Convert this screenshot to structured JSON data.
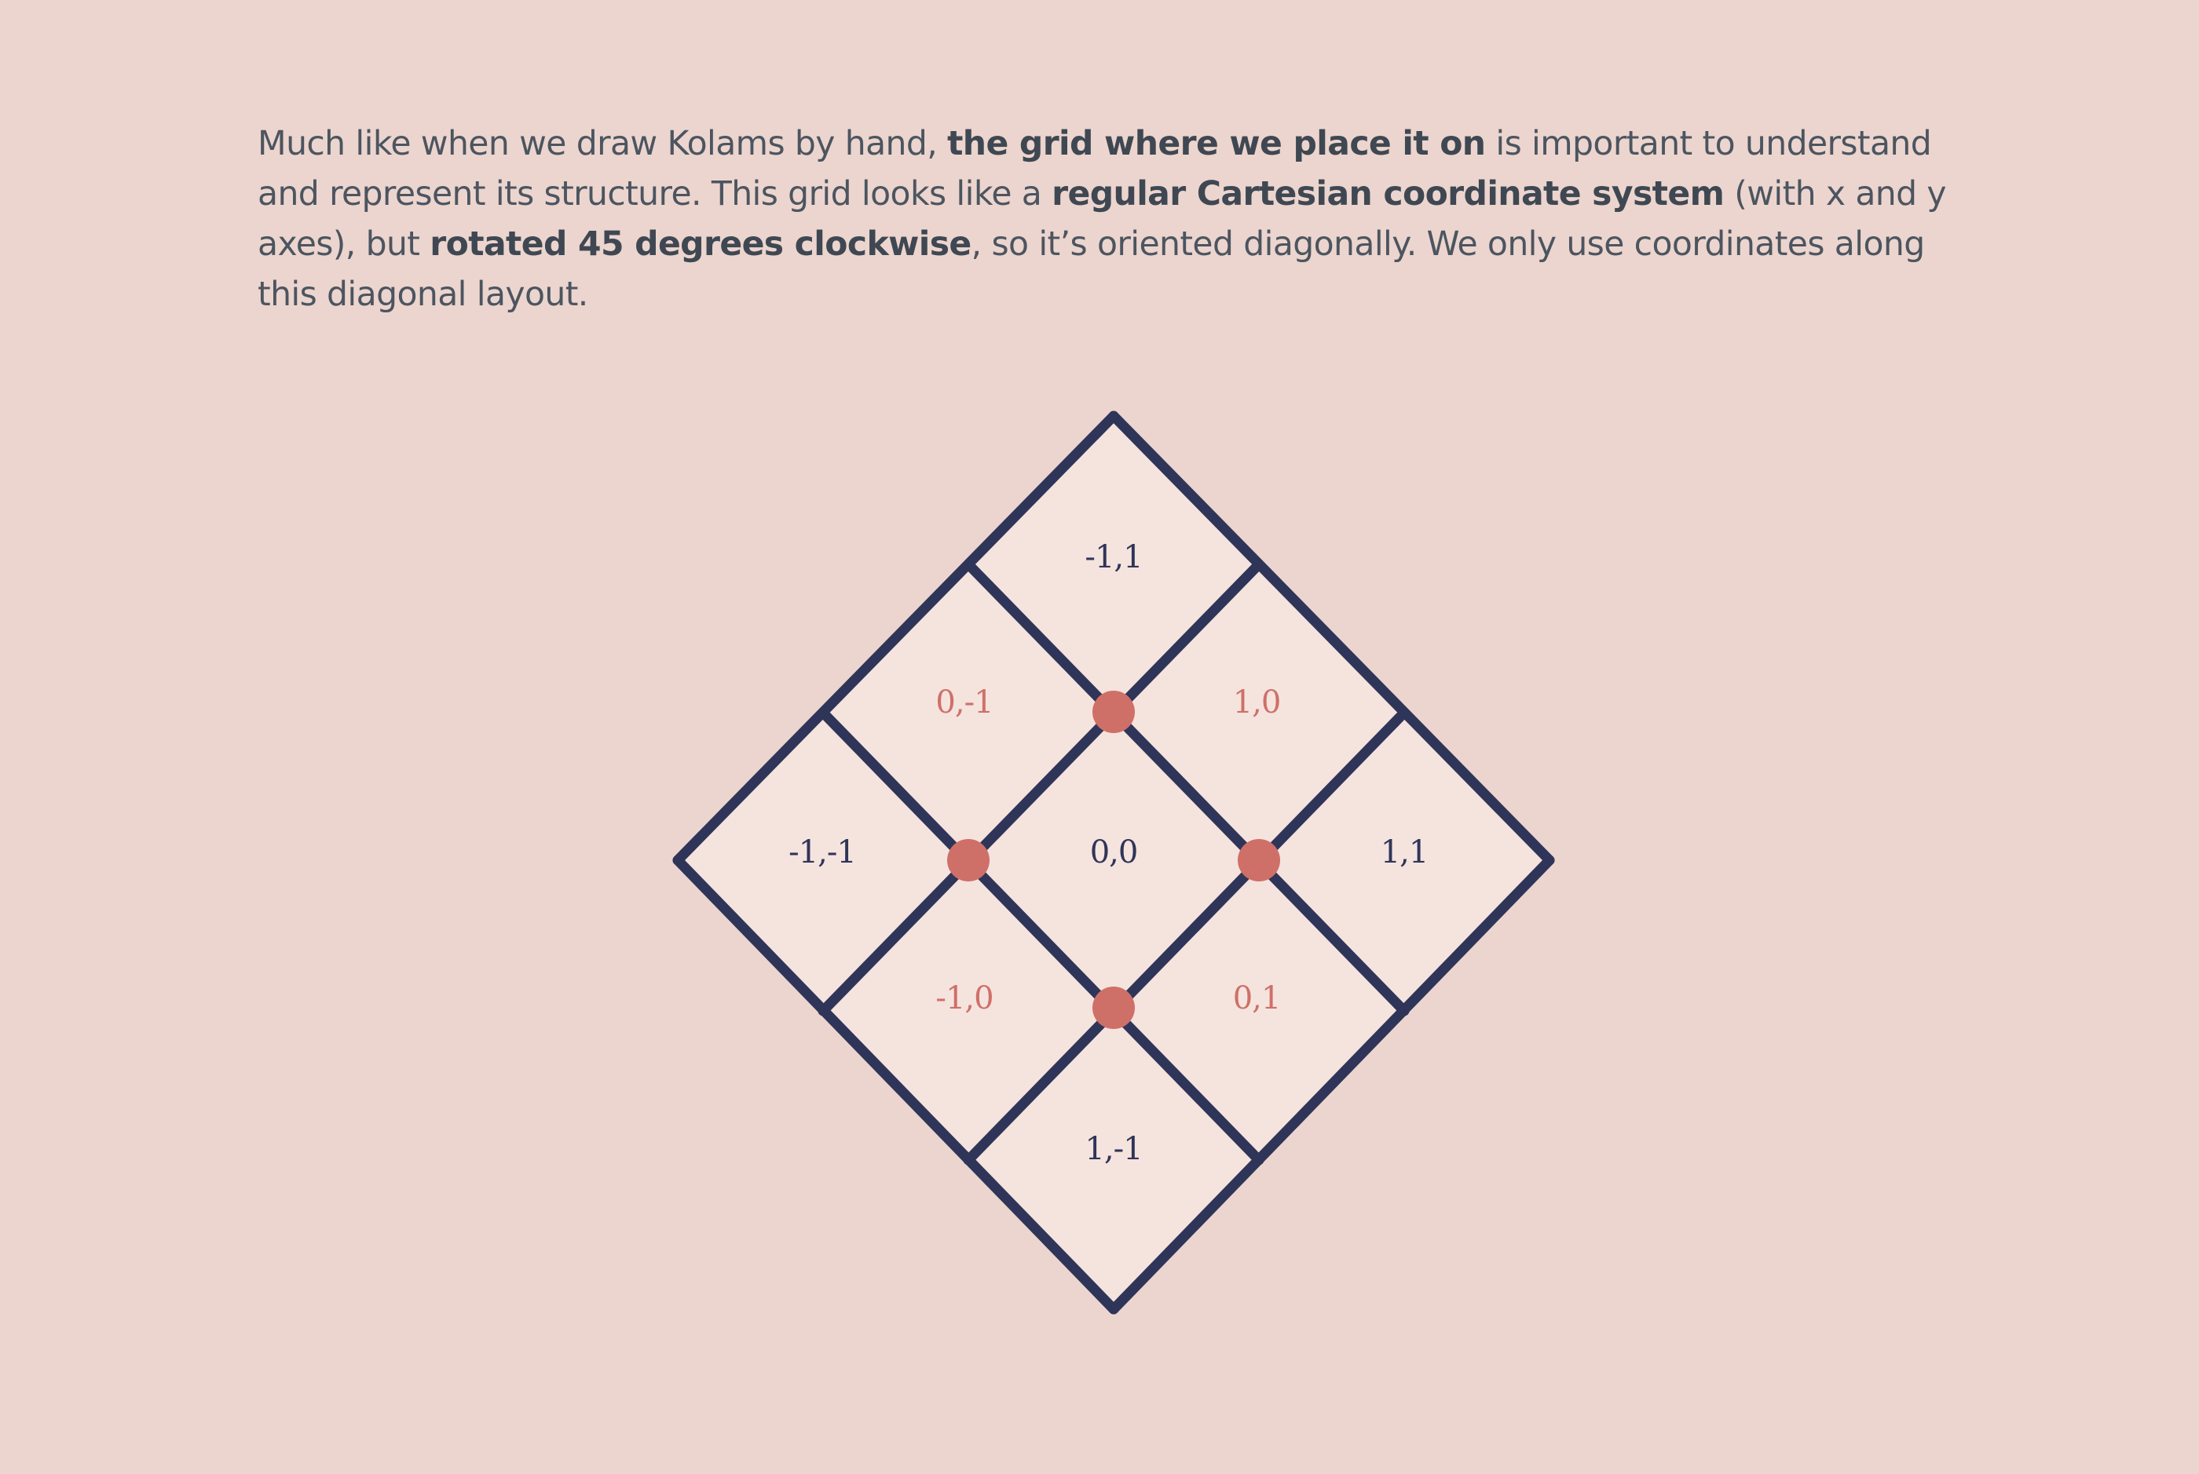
{
  "paragraph": {
    "part1": "Much like when we draw Kolams by hand, ",
    "bold1": "the grid where we place it on",
    "part2": " is important to understand and represent its structure. This grid looks like a ",
    "bold2": "regular Cartesian coordinate system",
    "part3": " (with x and y axes), but ",
    "bold3": "rotated 45 degrees clockwise",
    "part4": ", so it’s oriented diagonally. We only use coordinates along this diagonal layout."
  },
  "diagram": {
    "colors": {
      "background": "#ecd5ce",
      "cell_fill": "#f5e3de",
      "grid_line": "#2f3558",
      "dot": "#cf7068",
      "label_dark": "#2f3558",
      "label_accent": "#cf7068"
    },
    "cells": [
      {
        "label": "-1,1",
        "tone": "dark"
      },
      {
        "label": "0,-1",
        "tone": "accent"
      },
      {
        "label": "1,0",
        "tone": "accent"
      },
      {
        "label": "-1,-1",
        "tone": "dark"
      },
      {
        "label": "0,0",
        "tone": "dark"
      },
      {
        "label": "1,1",
        "tone": "dark"
      },
      {
        "label": "-1,0",
        "tone": "accent"
      },
      {
        "label": "0,1",
        "tone": "accent"
      },
      {
        "label": "1,-1",
        "tone": "dark"
      }
    ]
  }
}
